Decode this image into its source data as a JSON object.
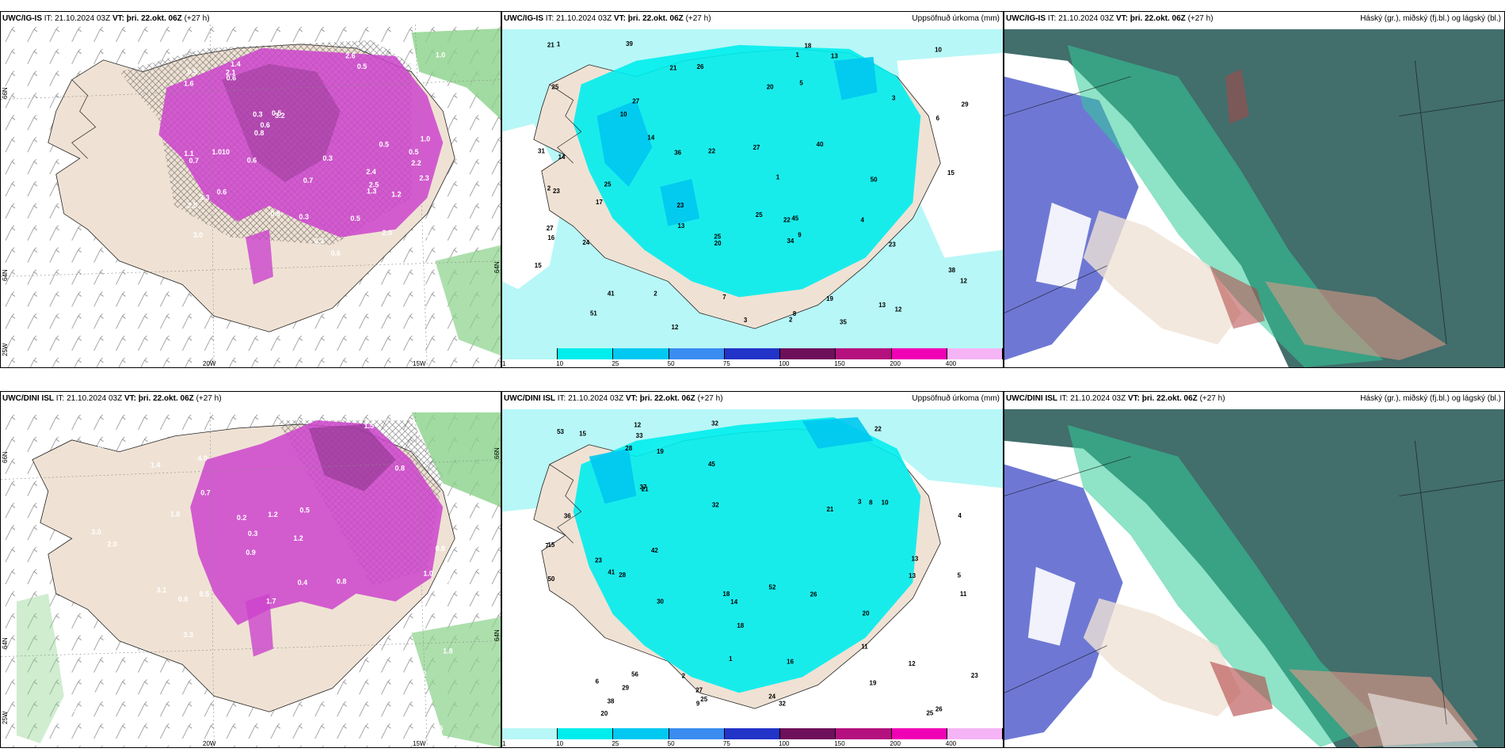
{
  "panels": [
    {
      "header_prefix": "UWC/IG-IS",
      "it_label": "IT: 21.10.2024 03Z",
      "vt_label": "VT: þri. 22.okt. 06Z",
      "lead": "(+27 h)",
      "right_title": "",
      "x_ticks": [
        "20W",
        "15W"
      ],
      "y_ticks": [
        "66N",
        "64N",
        "25W"
      ],
      "right_ticks": [
        "64N"
      ],
      "values": [
        "2.4",
        "2.2",
        "3.0",
        "1.4",
        "3.2",
        "2.0",
        "2.5",
        "0.5",
        "0.3",
        "0.6",
        "1.6",
        "1.1",
        "0.5",
        "0.5",
        "0.8",
        "1.0",
        "0.7",
        "0.3",
        "0.5",
        "0.6",
        "1.0",
        "0.5",
        "0.8",
        "2.3",
        "2.6",
        "2.1",
        "2.5",
        "0.7",
        "0.6",
        "0.5",
        "0.3",
        "0.5",
        "0.6",
        "0.6",
        "0.5",
        "1.2",
        "1.3",
        "1.010",
        "0.3",
        "3.3"
      ]
    },
    {
      "header_prefix": "UWC/IG-IS",
      "it_label": "IT: 21.10.2024 03Z",
      "vt_label": "VT: þri. 22.okt. 06Z",
      "lead": "(+27 h)",
      "right_title": "Uppsöfnuð úrkoma (mm)",
      "values": [
        "9",
        "14",
        "10",
        "34",
        "23",
        "22",
        "50",
        "45",
        "36",
        "27",
        "41",
        "31",
        "24",
        "25",
        "23",
        "38",
        "40",
        "16",
        "12",
        "10",
        "27",
        "22",
        "20",
        "51",
        "21",
        "18",
        "19",
        "23",
        "17",
        "12",
        "15",
        "13",
        "26",
        "25",
        "25",
        "39",
        "35",
        "15",
        "12",
        "27",
        "25",
        "20",
        "29",
        "21",
        "13",
        "14",
        "13",
        "8",
        "7",
        "6",
        "5",
        "3",
        "2",
        "1",
        "4",
        "3",
        "2",
        "1",
        "2",
        "1"
      ]
    },
    {
      "header_prefix": "UWC/IG-IS",
      "it_label": "IT: 21.10.2024 03Z",
      "vt_label": "VT: þri. 22.okt. 06Z",
      "lead": "(+27 h)",
      "right_title": "Háský (gr.), miðský (fj.bl.) og lágský (bl.)",
      "values": []
    },
    {
      "header_prefix": "UWC/DINI ISL",
      "it_label": "IT: 21.10.2024 03Z",
      "vt_label": "VT: þri. 22.okt. 06Z",
      "lead": "(+27 h)",
      "right_title": "",
      "x_ticks": [
        "20W",
        "15W"
      ],
      "y_ticks": [
        "66N",
        "64N",
        "25W"
      ],
      "right_ticks": [
        "66N",
        "64N"
      ],
      "values": [
        "2.2",
        "4.0",
        "0.2",
        "0.9",
        "0.7",
        "1.2",
        "2.3",
        "3.3",
        "3.1",
        "1.4",
        "1.0",
        "0.8",
        "0.5",
        "0.7",
        "0.4",
        "0.5",
        "1.2",
        "3.5",
        "3.0",
        "2.0",
        "0.5",
        "1.8",
        "1.2",
        "1.7",
        "1.5",
        "0.2",
        "0.3",
        "1.0",
        "0.8",
        "0.8",
        "0.8",
        "0.5",
        "0.5",
        "0.9",
        "2.3",
        "0.8"
      ]
    },
    {
      "header_prefix": "UWC/DINI ISL",
      "it_label": "IT: 21.10.2024 03Z",
      "vt_label": "VT: þri. 22.okt. 06Z",
      "lead": "(+27 h)",
      "right_title": "Uppsöfnuð úrkoma (mm)",
      "values": [
        "29",
        "32",
        "42",
        "52",
        "36",
        "56",
        "20",
        "37",
        "30",
        "41",
        "32",
        "22",
        "23",
        "25",
        "15",
        "23",
        "50",
        "45",
        "53",
        "38",
        "28",
        "21",
        "26",
        "19",
        "20",
        "11",
        "18",
        "13",
        "12",
        "24",
        "15",
        "19",
        "32",
        "33",
        "27",
        "25",
        "16",
        "14",
        "10",
        "18",
        "13",
        "11",
        "12",
        "26",
        "21",
        "28",
        "4",
        "5",
        "3",
        "2",
        "1",
        "6",
        "9",
        "7",
        "8"
      ]
    },
    {
      "header_prefix": "UWC/DINI ISL",
      "it_label": "IT: 21.10.2024 03Z",
      "vt_label": "VT: þri. 22.okt. 06Z",
      "lead": "(+27 h)",
      "right_title": "Háský (gr.), miðský (fj.bl.) og lágský (bl.)",
      "values": []
    }
  ],
  "colorbar": {
    "labels": [
      "1",
      "10",
      "25",
      "50",
      "75",
      "100",
      "150",
      "200",
      "400"
    ],
    "colors": [
      "#b7f7f7",
      "#00eded",
      "#00c8f0",
      "#3a8cf0",
      "#2233c8",
      "#6e0f5a",
      "#b4107e",
      "#f000b4",
      "#f5b4f5"
    ]
  },
  "palette": {
    "land": "#efe2d4",
    "precip_purple": "#cc44cc",
    "precip_dark": "#7a2a7a",
    "precip_green": "#8ad28a",
    "sea_cyan": "#b7f7f7",
    "cyan": "#00eded",
    "cloud_dark": "#2e5e5c",
    "cloud_blue": "#5560cc",
    "cloud_green": "#33cc99"
  }
}
